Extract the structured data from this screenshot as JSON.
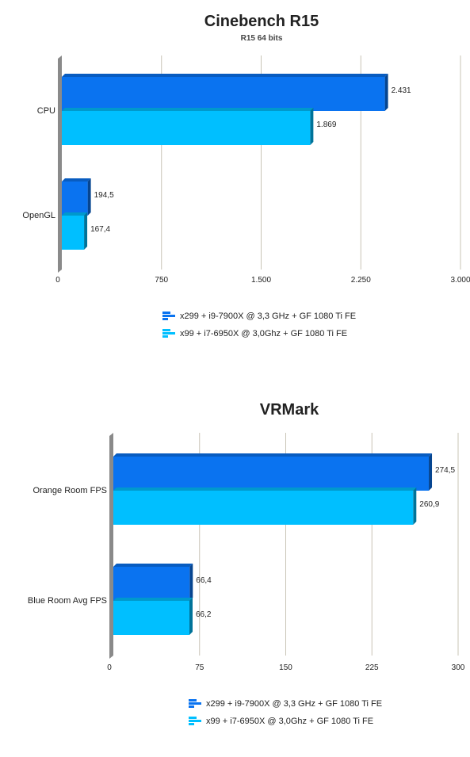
{
  "chart_data": [
    {
      "type": "bar",
      "orientation": "horizontal",
      "title": "Cinebench R15",
      "subtitle": "R15 64 bits",
      "categories": [
        "CPU",
        "OpenGL"
      ],
      "series": [
        {
          "name": "x299 + i9-7900X @ 3,3 GHz + GF 1080 Ti FE",
          "values": [
            2431,
            194.5
          ],
          "labels": [
            "2.431",
            "194,5"
          ],
          "color": "#0a73f0"
        },
        {
          "name": "x99 + i7-6950X @ 3,0Ghz + GF 1080 Ti FE",
          "values": [
            1869,
            167.4
          ],
          "labels": [
            "1.869",
            "167,4"
          ],
          "color": "#00bfff"
        }
      ],
      "xlim": [
        0,
        3000
      ],
      "ticks": [
        0,
        750,
        1500,
        2250,
        3000
      ],
      "tick_labels": [
        "0",
        "750",
        "1.500",
        "2.250",
        "3.000"
      ],
      "grid": true,
      "legend_position": "bottom-center"
    },
    {
      "type": "bar",
      "orientation": "horizontal",
      "title": "VRMark",
      "categories": [
        "Orange Room FPS",
        "Blue Room Avg FPS"
      ],
      "series": [
        {
          "name": "x299 + i9-7900X @ 3,3 GHz + GF 1080 Ti FE",
          "values": [
            274.5,
            66.4
          ],
          "labels": [
            "274,5",
            "66,4"
          ],
          "color": "#0a73f0"
        },
        {
          "name": "x99 + i7-6950X @ 3,0Ghz + GF 1080 Ti FE",
          "values": [
            260.9,
            66.2
          ],
          "labels": [
            "260,9",
            "66,2"
          ],
          "color": "#00bfff"
        }
      ],
      "xlim": [
        0,
        300
      ],
      "ticks": [
        0,
        75,
        150,
        225,
        300
      ],
      "tick_labels": [
        "0",
        "75",
        "150",
        "225",
        "300"
      ],
      "grid": true,
      "legend_position": "bottom-center"
    }
  ]
}
